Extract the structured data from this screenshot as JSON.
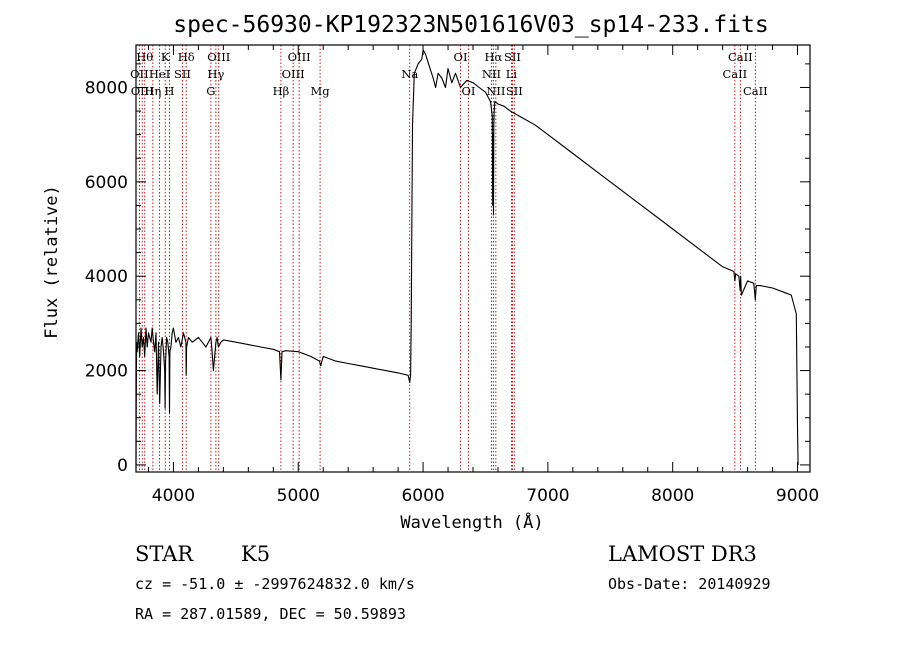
{
  "chart_data": {
    "type": "line",
    "title": "spec-56930-KP192323N501616V03_sp14-233.fits",
    "xlabel": "Wavelength (Å)",
    "ylabel": "Flux (relative)",
    "xlim": [
      3700,
      9100
    ],
    "ylim": [
      -150,
      8900
    ],
    "xticks": [
      4000,
      5000,
      6000,
      7000,
      8000,
      9000
    ],
    "yticks": [
      0,
      2000,
      4000,
      6000,
      8000
    ],
    "xtick_labels": [
      "4000",
      "5000",
      "6000",
      "7000",
      "8000",
      "9000"
    ],
    "ytick_labels": [
      "0",
      "2000",
      "4000",
      "6000",
      "8000"
    ],
    "series": [
      {
        "name": "flux",
        "x": [
          3700,
          3702,
          3705,
          3710,
          3720,
          3730,
          3740,
          3750,
          3760,
          3770,
          3780,
          3790,
          3800,
          3810,
          3820,
          3830,
          3840,
          3850,
          3860,
          3870,
          3880,
          3890,
          3900,
          3910,
          3920,
          3930,
          3933,
          3937,
          3945,
          3955,
          3965,
          3968,
          3972,
          3980,
          3990,
          4000,
          4020,
          4040,
          4060,
          4080,
          4100,
          4102,
          4105,
          4120,
          4150,
          4200,
          4230,
          4260,
          4300,
          4310,
          4320,
          4340,
          4350,
          4360,
          4380,
          4400,
          4500,
          4600,
          4700,
          4800,
          4850,
          4861,
          4870,
          4900,
          5000,
          5100,
          5170,
          5180,
          5200,
          5300,
          5400,
          5500,
          5600,
          5700,
          5800,
          5880,
          5893,
          5900,
          5905,
          5915,
          5930,
          5960,
          5990,
          6000,
          6020,
          6050,
          6080,
          6100,
          6120,
          6150,
          6180,
          6200,
          6230,
          6260,
          6300,
          6350,
          6400,
          6450,
          6500,
          6540,
          6555,
          6558,
          6561,
          6564,
          6567,
          6570,
          6575,
          6600,
          6650,
          6700,
          6800,
          6900,
          7000,
          7200,
          7400,
          7600,
          7800,
          8000,
          8200,
          8400,
          8490,
          8498,
          8505,
          8530,
          8540,
          8545,
          8550,
          8600,
          8650,
          8662,
          8670,
          8700,
          8800,
          8900,
          8950,
          8990,
          9000,
          9005
        ],
        "y": [
          0,
          1200,
          2600,
          2400,
          2800,
          2300,
          2900,
          2500,
          2700,
          2300,
          2900,
          2500,
          2800,
          2700,
          2600,
          2900,
          2600,
          2400,
          2800,
          1500,
          2600,
          1300,
          2500,
          2700,
          2400,
          2000,
          1200,
          2200,
          2700,
          2600,
          2300,
          1100,
          2400,
          2500,
          2800,
          2900,
          2600,
          2700,
          2500,
          2800,
          2600,
          1900,
          2500,
          2700,
          2600,
          2700,
          2600,
          2500,
          2700,
          2400,
          2000,
          2600,
          2700,
          2500,
          2600,
          2650,
          2600,
          2550,
          2500,
          2450,
          2400,
          1800,
          2400,
          2420,
          2400,
          2300,
          2200,
          2100,
          2300,
          2200,
          2150,
          2100,
          2050,
          2000,
          1950,
          1900,
          1750,
          1900,
          3000,
          7200,
          8300,
          8500,
          8600,
          8800,
          8700,
          8450,
          8200,
          8000,
          8300,
          8200,
          8000,
          8400,
          8100,
          8300,
          8000,
          8150,
          8100,
          8000,
          7900,
          7700,
          7400,
          5500,
          7000,
          5300,
          7200,
          7500,
          7700,
          7650,
          7600,
          7500,
          7350,
          7200,
          7000,
          6600,
          6200,
          5800,
          5400,
          5000,
          4600,
          4200,
          4100,
          3900,
          4050,
          4000,
          3700,
          4000,
          3600,
          3900,
          3850,
          3500,
          3800,
          3800,
          3750,
          3650,
          3600,
          3200,
          800,
          0
        ]
      }
    ],
    "line_markers": [
      {
        "wave": 3727,
        "label": "OII",
        "row": 2
      },
      {
        "wave": 3750,
        "label": "OIII",
        "row": 3
      },
      {
        "wave": 3770,
        "label": "Hθ",
        "row": 1
      },
      {
        "wave": 3835,
        "label": "Hη",
        "row": 3
      },
      {
        "wave": 3889,
        "label": "HeI",
        "row": 2
      },
      {
        "wave": 3934,
        "label": "K",
        "row": 1
      },
      {
        "wave": 3968,
        "label": "H",
        "row": 3
      },
      {
        "wave": 4072,
        "label": "SII",
        "row": 2
      },
      {
        "wave": 4102,
        "label": "Hδ",
        "row": 1
      },
      {
        "wave": 4300,
        "label": "G",
        "row": 3
      },
      {
        "wave": 4340,
        "label": "Hγ",
        "row": 2
      },
      {
        "wave": 4363,
        "label": "OIII",
        "row": 1
      },
      {
        "wave": 4861,
        "label": "Hβ",
        "row": 3
      },
      {
        "wave": 4959,
        "label": "OIII",
        "row": 2
      },
      {
        "wave": 5007,
        "label": "OIII",
        "row": 1
      },
      {
        "wave": 5175,
        "label": "Mg",
        "row": 3
      },
      {
        "wave": 5893,
        "label": "Na",
        "row": 2
      },
      {
        "wave": 6300,
        "label": "OI",
        "row": 1
      },
      {
        "wave": 6364,
        "label": "OI",
        "row": 3
      },
      {
        "wave": 6548,
        "label": "NII",
        "row": 2
      },
      {
        "wave": 6563,
        "label": "Hα",
        "row": 1
      },
      {
        "wave": 6583,
        "label": "NII",
        "row": 3
      },
      {
        "wave": 6708,
        "label": "Li",
        "row": 2
      },
      {
        "wave": 6716,
        "label": "SII",
        "row": 1
      },
      {
        "wave": 6731,
        "label": "SII",
        "row": 3
      },
      {
        "wave": 8498,
        "label": "CaII",
        "row": 2
      },
      {
        "wave": 8542,
        "label": "CaII",
        "row": 1
      },
      {
        "wave": 8662,
        "label": "CaII",
        "row": 3
      }
    ],
    "marker_color": "#c00000",
    "line_color": "#000000"
  },
  "info": {
    "object_class": "STAR",
    "subclass": "K5",
    "survey": "LAMOST DR3",
    "redshift_line": "cz = -51.0 ± -2997624832.0 km/s",
    "obs_date": "Obs-Date: 20140929",
    "coords": "RA = 287.01589, DEC =  50.59893"
  }
}
